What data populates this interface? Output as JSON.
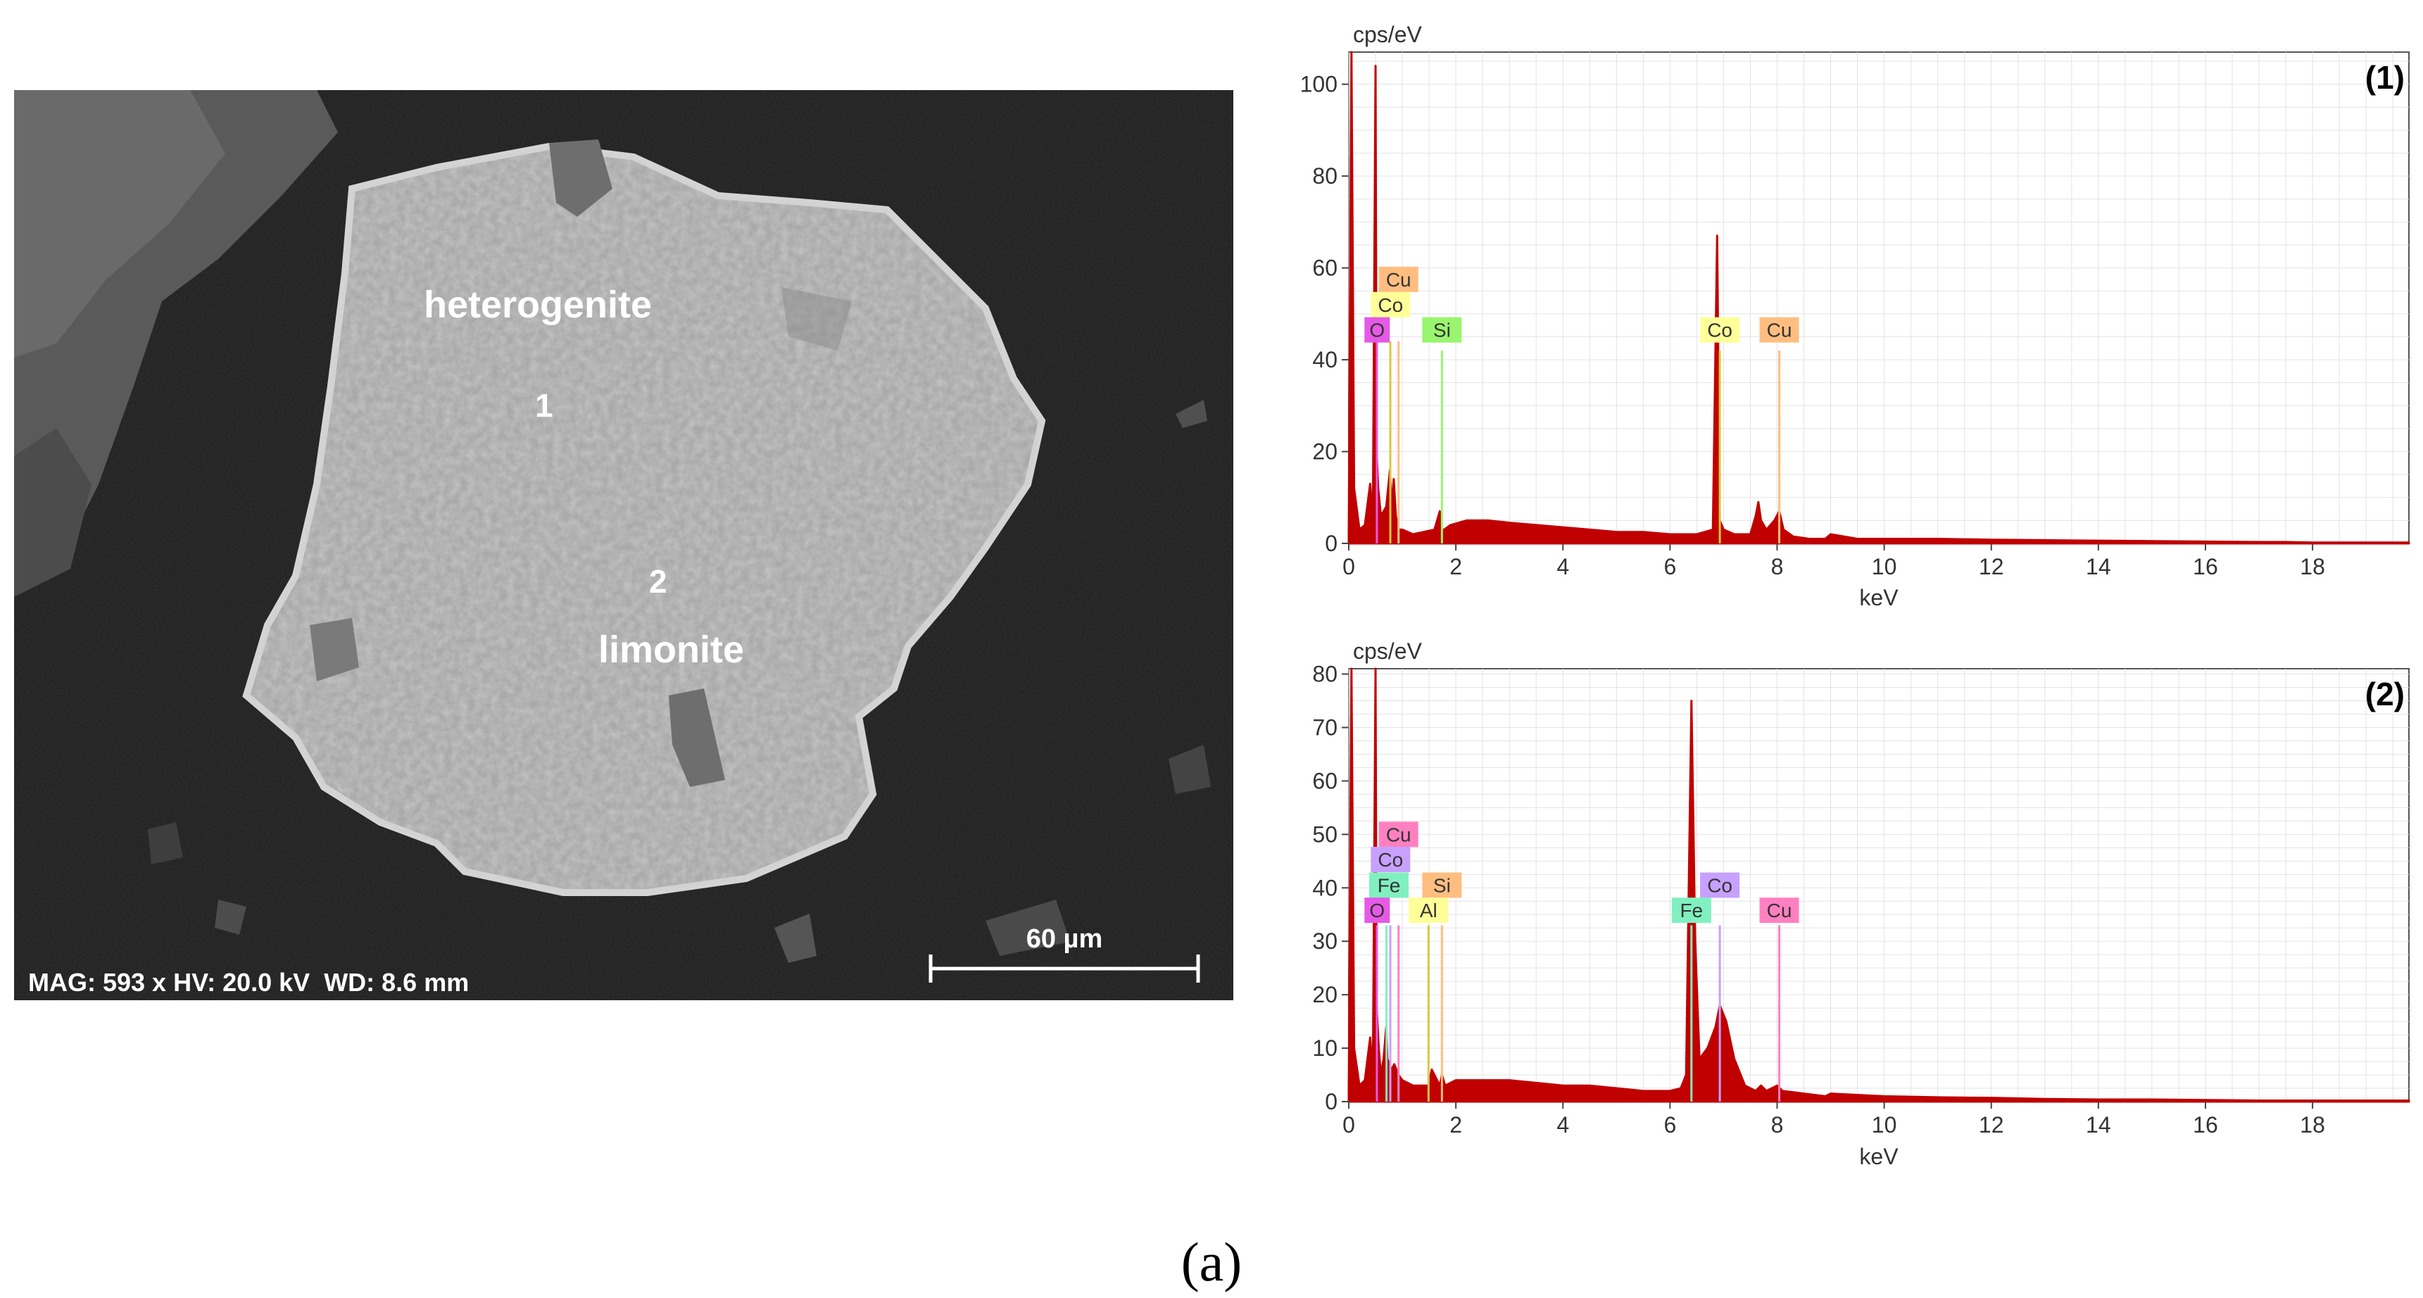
{
  "sem_image": {
    "mineral_labels": [
      "heterogenite",
      "limonite"
    ],
    "point_labels": [
      "1",
      "2"
    ],
    "footer": "MAG: 593 x HV: 20.0 kV  WD: 8.6 mm",
    "scale_bar_label": "60 µm"
  },
  "caption": "(a)",
  "colors": {
    "spectrum": "#c00000",
    "O": "#e659e6",
    "Co_1": "#ffff99",
    "Cu_1": "#ffbe80",
    "Si_1": "#99f56e",
    "Cu_2": "#ff80c0",
    "Co_2": "#c8a0ff",
    "Fe": "#80f0c0",
    "Si_2": "#ffbe80",
    "Al": "#ffff99"
  },
  "chart_data": [
    {
      "type": "line",
      "title": "(1)",
      "xlabel": "keV",
      "ylabel": "cps/eV",
      "xlim": [
        0,
        19.8
      ],
      "ylim": [
        0,
        107
      ],
      "x_ticks": [
        0,
        2,
        4,
        6,
        8,
        10,
        12,
        14,
        16,
        18
      ],
      "y_ticks": [
        0,
        20,
        40,
        60,
        80,
        100
      ],
      "grid": true,
      "series": [
        {
          "x": [
            0,
            0.05,
            0.1,
            0.2,
            0.3,
            0.4,
            0.45,
            0.5,
            0.52,
            0.55,
            0.6,
            0.65,
            0.7,
            0.77,
            0.8,
            0.84,
            0.88,
            0.93,
            1.0,
            1.2,
            1.4,
            1.6,
            1.7,
            1.74,
            1.78,
            1.9,
            2.2,
            2.6,
            3.0,
            3.5,
            4.0,
            4.5,
            5.0,
            5.5,
            6.0,
            6.5,
            6.8,
            6.88,
            6.93,
            7.0,
            7.2,
            7.5,
            7.6,
            7.65,
            7.7,
            7.8,
            7.95,
            8.04,
            8.12,
            8.3,
            8.6,
            8.9,
            9.0,
            9.5,
            10,
            11,
            12,
            13,
            14,
            15,
            16,
            17,
            17.5,
            18,
            19,
            19.8
          ],
          "y": [
            2,
            107,
            12,
            3,
            4,
            13,
            5,
            104,
            20,
            12,
            6,
            7,
            8,
            16,
            8,
            14,
            6,
            3,
            3,
            2,
            2.5,
            3,
            7,
            3,
            3,
            4,
            5,
            5,
            4.5,
            4,
            3.5,
            3,
            2.5,
            2.5,
            2,
            2,
            3,
            67,
            5,
            3,
            2,
            2,
            6,
            9,
            5,
            3,
            5,
            7,
            3,
            1.5,
            1,
            1,
            2,
            1,
            1,
            1,
            0.8,
            0.7,
            0.6,
            0.5,
            0.4,
            0.3,
            0.3,
            0.2,
            0.2,
            0.2
          ]
        }
      ],
      "element_markers": [
        {
          "label": "O",
          "x": 0.525,
          "y_top": 44,
          "color_key": "O"
        },
        {
          "label": "Co",
          "x": 0.776,
          "y_top": 44,
          "color_key": "Co_1"
        },
        {
          "label": "Cu",
          "x": 0.93,
          "y_top": 44,
          "color_key": "Cu_1"
        },
        {
          "label": "Si",
          "x": 1.74,
          "y_top": 42,
          "color_key": "Si_1"
        },
        {
          "label": "Co",
          "x": 6.93,
          "y_top": 42,
          "color_key": "Co_1"
        },
        {
          "label": "Cu",
          "x": 8.04,
          "y_top": 42,
          "color_key": "Cu_1"
        }
      ],
      "element_labels": [
        {
          "text": "Cu",
          "x": 0.93,
          "y": 57.5,
          "color_key": "Cu_1"
        },
        {
          "text": "Co",
          "x": 0.78,
          "y": 52,
          "color_key": "Co_1"
        },
        {
          "text": "O",
          "x": 0.53,
          "y": 46.5,
          "color_key": "O"
        },
        {
          "text": "Si",
          "x": 1.74,
          "y": 46.5,
          "color_key": "Si_1"
        },
        {
          "text": "Co",
          "x": 6.93,
          "y": 46.5,
          "color_key": "Co_1"
        },
        {
          "text": "Cu",
          "x": 8.04,
          "y": 46.5,
          "color_key": "Cu_1"
        }
      ]
    },
    {
      "type": "line",
      "title": "(2)",
      "xlabel": "keV",
      "ylabel": "cps/eV",
      "xlim": [
        0,
        19.8
      ],
      "ylim": [
        0,
        81
      ],
      "x_ticks": [
        0,
        2,
        4,
        6,
        8,
        10,
        12,
        14,
        16,
        18
      ],
      "y_ticks": [
        0,
        10,
        20,
        30,
        40,
        50,
        60,
        70,
        80
      ],
      "grid": true,
      "series": [
        {
          "x": [
            0,
            0.05,
            0.1,
            0.2,
            0.3,
            0.4,
            0.45,
            0.5,
            0.52,
            0.56,
            0.6,
            0.65,
            0.7,
            0.72,
            0.8,
            0.85,
            0.93,
            1.0,
            1.2,
            1.49,
            1.55,
            1.7,
            1.74,
            1.8,
            2.0,
            2.5,
            3.0,
            3.5,
            4.0,
            4.5,
            5.0,
            5.5,
            6.0,
            6.2,
            6.3,
            6.4,
            6.47,
            6.55,
            6.7,
            6.85,
            6.93,
            7.05,
            7.2,
            7.4,
            7.6,
            7.7,
            7.8,
            8.0,
            8.1,
            8.5,
            8.9,
            9.0,
            10,
            11,
            12,
            13,
            14,
            15,
            16,
            17,
            17.5,
            18,
            19,
            19.8
          ],
          "y": [
            2,
            81,
            10,
            3,
            4,
            12,
            5,
            81,
            18,
            10,
            5,
            8,
            14,
            8,
            6,
            7,
            5,
            4,
            3,
            3,
            6,
            3,
            5,
            3,
            4,
            4,
            4,
            3.5,
            3,
            3,
            2.5,
            2,
            2,
            2.5,
            5,
            75,
            30,
            8,
            10,
            14,
            18,
            15,
            8,
            3,
            2,
            3,
            2,
            3,
            2,
            1.5,
            1,
            1.5,
            1,
            0.8,
            0.7,
            0.5,
            0.4,
            0.4,
            0.3,
            0.2,
            0.2,
            0.2,
            0.2,
            0.2
          ]
        }
      ],
      "element_markers": [
        {
          "label": "O",
          "x": 0.525,
          "y_top": 33,
          "color_key": "O"
        },
        {
          "label": "Fe",
          "x": 0.705,
          "y_top": 33,
          "color_key": "Fe"
        },
        {
          "label": "Co",
          "x": 0.776,
          "y_top": 33,
          "color_key": "Co_2"
        },
        {
          "label": "Cu",
          "x": 0.93,
          "y_top": 33,
          "color_key": "Cu_2"
        },
        {
          "label": "Al",
          "x": 1.49,
          "y_top": 33,
          "color_key": "Al"
        },
        {
          "label": "Si",
          "x": 1.74,
          "y_top": 33,
          "color_key": "Si_2"
        },
        {
          "label": "Fe",
          "x": 6.4,
          "y_top": 33,
          "color_key": "Fe"
        },
        {
          "label": "Co",
          "x": 6.93,
          "y_top": 33,
          "color_key": "Co_2"
        },
        {
          "label": "Cu",
          "x": 8.04,
          "y_top": 33,
          "color_key": "Cu_2"
        }
      ],
      "element_labels": [
        {
          "text": "Cu",
          "x": 0.93,
          "y": 50,
          "color_key": "Cu_2"
        },
        {
          "text": "Co",
          "x": 0.78,
          "y": 45.3,
          "color_key": "Co_2"
        },
        {
          "text": "Fe",
          "x": 0.75,
          "y": 40.5,
          "color_key": "Fe"
        },
        {
          "text": "O",
          "x": 0.53,
          "y": 35.8,
          "color_key": "O"
        },
        {
          "text": "Si",
          "x": 1.74,
          "y": 40.5,
          "color_key": "Si_2"
        },
        {
          "text": "Al",
          "x": 1.49,
          "y": 35.8,
          "color_key": "Al"
        },
        {
          "text": "Co",
          "x": 6.93,
          "y": 40.5,
          "color_key": "Co_2"
        },
        {
          "text": "Fe",
          "x": 6.4,
          "y": 35.8,
          "color_key": "Fe"
        },
        {
          "text": "Cu",
          "x": 8.04,
          "y": 35.8,
          "color_key": "Cu_2"
        }
      ]
    }
  ]
}
